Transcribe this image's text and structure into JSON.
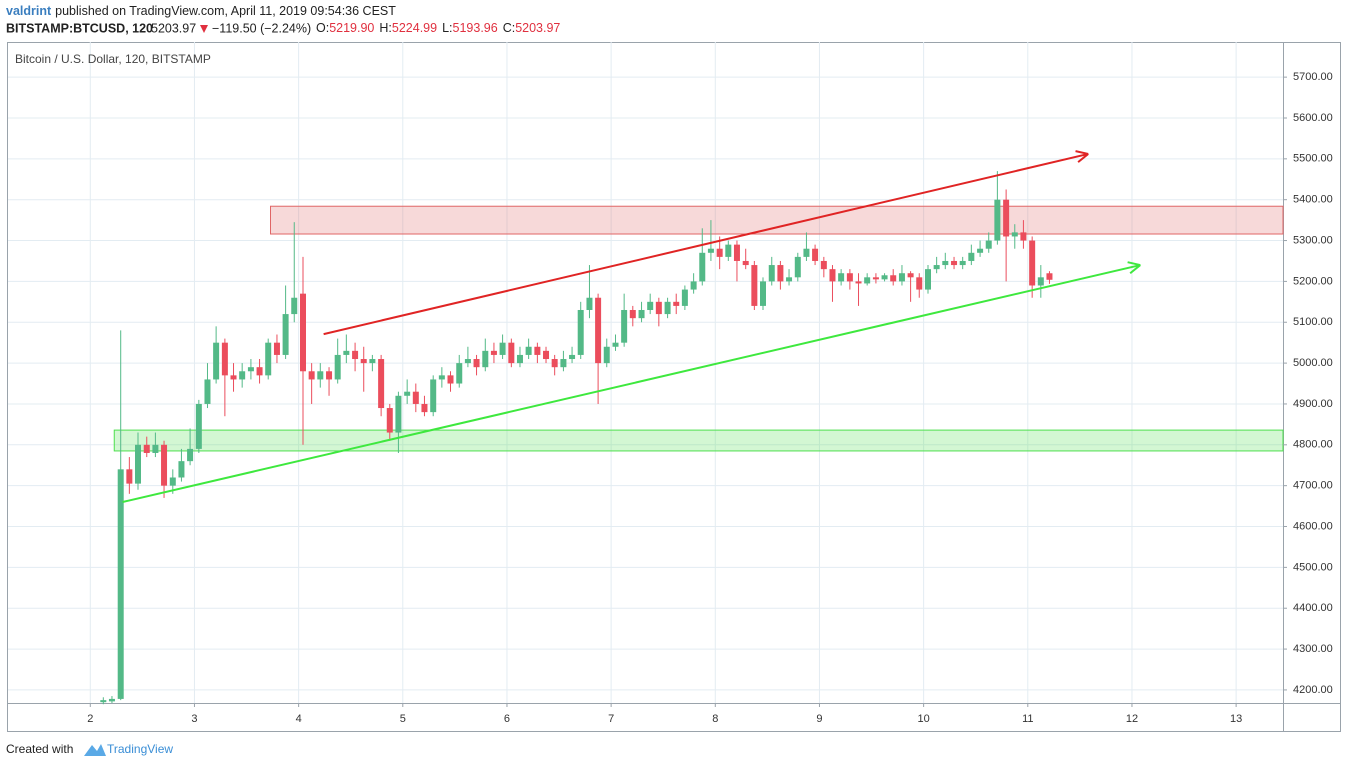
{
  "header": {
    "author": "valdrint",
    "published": "published on TradingView.com, April 11, 2019 09:54:36 CEST",
    "symbol": "BITSTAMP:BTCUSD, 120",
    "last": "5203.97",
    "change": "−119.50 (−2.24%)",
    "ohlc": [
      {
        "label": "O:",
        "value": "5219.90"
      },
      {
        "label": "H:",
        "value": "5224.99"
      },
      {
        "label": "L:",
        "value": "5193.96"
      },
      {
        "label": "C:",
        "value": "5203.97"
      }
    ]
  },
  "footer": {
    "created": "Created with",
    "brand": "TradingView"
  },
  "chart_data": {
    "type": "candlestick",
    "title": "Bitcoin / U.S. Dollar, 120, BITSTAMP",
    "x": [
      2.125,
      2.208,
      2.292,
      2.375,
      2.458,
      2.542,
      2.625,
      2.708,
      2.792,
      2.875,
      2.958,
      3.042,
      3.125,
      3.208,
      3.292,
      3.375,
      3.458,
      3.542,
      3.625,
      3.708,
      3.792,
      3.875,
      3.958,
      4.042,
      4.125,
      4.208,
      4.292,
      4.375,
      4.458,
      4.542,
      4.625,
      4.708,
      4.792,
      4.875,
      4.958,
      5.042,
      5.125,
      5.208,
      5.292,
      5.375,
      5.458,
      5.542,
      5.625,
      5.708,
      5.792,
      5.875,
      5.958,
      6.042,
      6.125,
      6.208,
      6.292,
      6.375,
      6.458,
      6.542,
      6.625,
      6.708,
      6.792,
      6.875,
      6.958,
      7.042,
      7.125,
      7.208,
      7.292,
      7.375,
      7.458,
      7.542,
      7.625,
      7.708,
      7.792,
      7.875,
      7.958,
      8.042,
      8.125,
      8.208,
      8.292,
      8.375,
      8.458,
      8.542,
      8.625,
      8.708,
      8.792,
      8.875,
      8.958,
      9.042,
      9.125,
      9.208,
      9.292,
      9.375,
      9.458,
      9.542,
      9.625,
      9.708,
      9.792,
      9.875,
      9.958,
      10.042,
      10.125,
      10.208,
      10.292,
      10.375,
      10.458,
      10.542,
      10.625,
      10.708,
      10.792,
      10.875,
      10.958,
      11.042,
      11.125,
      11.208
    ],
    "open": [
      4170,
      4172,
      4178,
      4740,
      4705,
      4800,
      4780,
      4800,
      4700,
      4720,
      4760,
      4790,
      4900,
      4960,
      5050,
      4970,
      4960,
      4980,
      4990,
      4970,
      5050,
      5020,
      5120,
      5170,
      4980,
      4960,
      4980,
      4960,
      5020,
      5030,
      5010,
      5000,
      5010,
      4890,
      4830,
      4920,
      4930,
      4900,
      4880,
      4960,
      4970,
      4950,
      5000,
      5010,
      4990,
      5030,
      5020,
      5050,
      5000,
      5020,
      5040,
      5030,
      5010,
      4990,
      5010,
      5020,
      5130,
      5160,
      5000,
      5040,
      5050,
      5130,
      5110,
      5130,
      5150,
      5120,
      5150,
      5140,
      5180,
      5200,
      5270,
      5280,
      5260,
      5290,
      5250,
      5240,
      5140,
      5200,
      5240,
      5200,
      5210,
      5260,
      5280,
      5250,
      5230,
      5200,
      5220,
      5200,
      5195,
      5210,
      5205,
      5215,
      5200,
      5220,
      5210,
      5180,
      5230,
      5240,
      5250,
      5240,
      5250,
      5270,
      5280,
      5300,
      5400,
      5310,
      5320,
      5300,
      5190,
      5219.9
    ],
    "high": [
      4182,
      4185,
      5080,
      4770,
      4830,
      4820,
      4830,
      4810,
      4740,
      4790,
      4840,
      4910,
      5000,
      5090,
      5060,
      5000,
      5000,
      5010,
      5010,
      5060,
      5070,
      5190,
      5345,
      5260,
      5000,
      5000,
      4990,
      5060,
      5070,
      5050,
      5040,
      5020,
      5020,
      4900,
      4930,
      4960,
      4950,
      4920,
      4970,
      4990,
      4980,
      5020,
      5040,
      5020,
      5060,
      5050,
      5070,
      5060,
      5040,
      5060,
      5050,
      5040,
      5020,
      5030,
      5040,
      5150,
      5240,
      5170,
      5060,
      5070,
      5170,
      5140,
      5150,
      5170,
      5160,
      5160,
      5170,
      5190,
      5220,
      5330,
      5350,
      5310,
      5300,
      5300,
      5280,
      5250,
      5210,
      5260,
      5250,
      5230,
      5270,
      5320,
      5290,
      5260,
      5240,
      5230,
      5230,
      5220,
      5220,
      5220,
      5220,
      5230,
      5240,
      5225,
      5220,
      5240,
      5260,
      5270,
      5260,
      5260,
      5290,
      5300,
      5320,
      5470,
      5425,
      5340,
      5350,
      5310,
      5240,
      5224.99
    ],
    "low": [
      4165,
      4168,
      4175,
      4680,
      4690,
      4770,
      4770,
      4670,
      4680,
      4710,
      4750,
      4780,
      4890,
      4950,
      4870,
      4930,
      4940,
      4960,
      4950,
      4960,
      5000,
      5010,
      5100,
      4800,
      4900,
      4940,
      4920,
      4950,
      5000,
      4980,
      4930,
      4980,
      4870,
      4810,
      4780,
      4900,
      4880,
      4870,
      4870,
      4940,
      4930,
      4940,
      4990,
      4970,
      4980,
      5000,
      5010,
      4990,
      4990,
      5010,
      5000,
      5000,
      4970,
      4980,
      5000,
      5010,
      5110,
      4900,
      4990,
      5030,
      5040,
      5090,
      5100,
      5120,
      5090,
      5110,
      5120,
      5130,
      5170,
      5190,
      5250,
      5230,
      5250,
      5200,
      5230,
      5130,
      5130,
      5190,
      5180,
      5190,
      5200,
      5250,
      5240,
      5210,
      5150,
      5190,
      5180,
      5140,
      5190,
      5195,
      5200,
      5190,
      5190,
      5150,
      5160,
      5170,
      5220,
      5230,
      5230,
      5230,
      5240,
      5260,
      5270,
      5290,
      5200,
      5280,
      5280,
      5160,
      5160,
      5193.96
    ],
    "close": [
      4175,
      4178,
      4740,
      4705,
      4800,
      4780,
      4800,
      4700,
      4720,
      4760,
      4790,
      4900,
      4960,
      5050,
      4970,
      4960,
      4980,
      4990,
      4970,
      5050,
      5020,
      5120,
      5160,
      4980,
      4960,
      4980,
      4960,
      5020,
      5030,
      5010,
      5000,
      5010,
      4890,
      4830,
      4920,
      4930,
      4900,
      4880,
      4960,
      4970,
      4950,
      5000,
      5010,
      4990,
      5030,
      5020,
      5050,
      5000,
      5020,
      5040,
      5020,
      5010,
      4990,
      5010,
      5020,
      5130,
      5160,
      5000,
      5040,
      5050,
      5130,
      5110,
      5130,
      5150,
      5120,
      5150,
      5140,
      5180,
      5200,
      5270,
      5280,
      5260,
      5290,
      5250,
      5240,
      5140,
      5200,
      5240,
      5200,
      5210,
      5260,
      5280,
      5250,
      5230,
      5200,
      5220,
      5200,
      5195,
      5210,
      5205,
      5215,
      5200,
      5220,
      5210,
      5180,
      5230,
      5240,
      5250,
      5240,
      5250,
      5270,
      5280,
      5300,
      5400,
      5310,
      5320,
      5300,
      5190,
      5210,
      5203.97
    ],
    "up_color": "#53b987",
    "down_color": "#eb4d5c",
    "xlim": [
      1.21,
      13.45
    ],
    "xticks": [
      2,
      3,
      4,
      5,
      6,
      7,
      8,
      9,
      10,
      11,
      12,
      13
    ],
    "ylim": [
      4168,
      5786
    ],
    "yticks": [
      {
        "value": 4200,
        "label": "4200.00"
      },
      {
        "value": 4300,
        "label": "4300.00"
      },
      {
        "value": 4400,
        "label": "4400.00"
      },
      {
        "value": 4500,
        "label": "4500.00"
      },
      {
        "value": 4600,
        "label": "4600.00"
      },
      {
        "value": 4700,
        "label": "4700.00"
      },
      {
        "value": 4800,
        "label": "4800.00"
      },
      {
        "value": 4900,
        "label": "4900.00"
      },
      {
        "value": 5000,
        "label": "5000.00"
      },
      {
        "value": 5100,
        "label": "5100.00"
      },
      {
        "value": 5200,
        "label": "5200.00"
      },
      {
        "value": 5300,
        "label": "5300.00"
      },
      {
        "value": 5400,
        "label": "5400.00"
      },
      {
        "value": 5500,
        "label": "5500.00"
      },
      {
        "value": 5600,
        "label": "5600.00"
      },
      {
        "value": 5700,
        "label": "5700.00"
      }
    ],
    "grid": true,
    "zones": [
      {
        "x": 3.73,
        "low": 5316,
        "high": 5384,
        "color": "#e06666"
      },
      {
        "x": 2.23,
        "low": 4785,
        "high": 4836,
        "color": "#4ee04e"
      }
    ],
    "trendlines": [
      {
        "x": [
          4.24,
          11.58
        ],
        "y": [
          5071,
          5512
        ],
        "color": "#e02424"
      },
      {
        "x": [
          2.31,
          12.08
        ],
        "y": [
          4660,
          5240
        ],
        "color": "#3ee83e"
      }
    ]
  }
}
